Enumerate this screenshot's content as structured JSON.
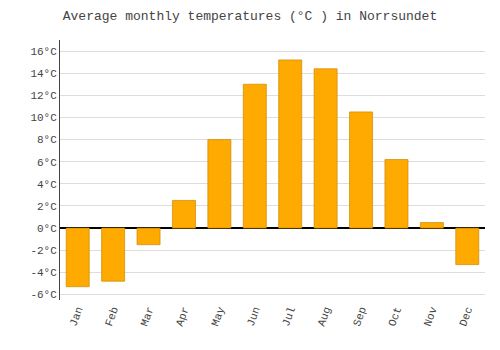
{
  "chart_data": {
    "type": "bar",
    "title": "Average monthly temperatures (°C ) in Norrsundet",
    "categories": [
      "Jan",
      "Feb",
      "Mar",
      "Apr",
      "May",
      "Jun",
      "Jul",
      "Aug",
      "Sep",
      "Oct",
      "Nov",
      "Dec"
    ],
    "values": [
      -5.3,
      -4.8,
      -1.5,
      2.5,
      8.0,
      13.0,
      15.2,
      14.4,
      10.5,
      6.2,
      0.5,
      -3.3
    ],
    "color": "#FFAA00",
    "ylim": [
      -6.5,
      17
    ],
    "yticks": [
      {
        "value": -6,
        "label": "-6°C"
      },
      {
        "value": -4,
        "label": "-4°C"
      },
      {
        "value": -2,
        "label": "-2°C"
      },
      {
        "value": 0,
        "label": "0°C"
      },
      {
        "value": 2,
        "label": "2°C"
      },
      {
        "value": 4,
        "label": "4°C"
      },
      {
        "value": 6,
        "label": "6°C"
      },
      {
        "value": 8,
        "label": "8°C"
      },
      {
        "value": 10,
        "label": "10°C"
      },
      {
        "value": 12,
        "label": "12°C"
      },
      {
        "value": 14,
        "label": "14°C"
      },
      {
        "value": 16,
        "label": "16°C"
      }
    ],
    "grid": true
  }
}
